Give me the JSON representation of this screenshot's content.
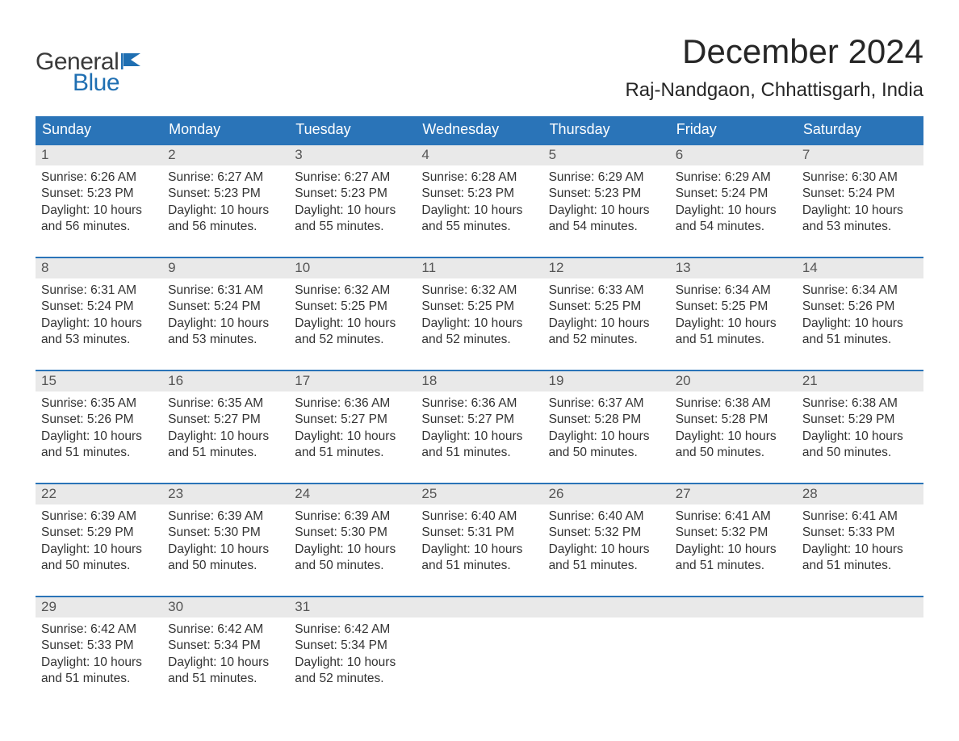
{
  "brand": {
    "word1": "General",
    "word2": "Blue",
    "text_color_general": "#3a3a3a",
    "text_color_blue": "#1f6fb2",
    "flag_color": "#1f6fb2"
  },
  "title": "December 2024",
  "location": "Raj-Nandgaon, Chhattisgarh, India",
  "colors": {
    "header_bg": "#2a74b8",
    "header_text": "#ffffff",
    "daynum_bg": "#e9e9e9",
    "daynum_text": "#555555",
    "body_text": "#333333",
    "week_border": "#2a74b8",
    "page_bg": "#ffffff"
  },
  "layout": {
    "columns": 7,
    "rows": 5,
    "font_family": "Arial",
    "title_fontsize": 42,
    "location_fontsize": 24,
    "weekday_fontsize": 18,
    "daynum_fontsize": 17,
    "body_fontsize": 15.5
  },
  "weekdays": [
    "Sunday",
    "Monday",
    "Tuesday",
    "Wednesday",
    "Thursday",
    "Friday",
    "Saturday"
  ],
  "labels": {
    "sunrise": "Sunrise:",
    "sunset": "Sunset:",
    "daylight": "Daylight:"
  },
  "weeks": [
    [
      {
        "n": "1",
        "sunrise": "6:26 AM",
        "sunset": "5:23 PM",
        "daylight": "10 hours and 56 minutes."
      },
      {
        "n": "2",
        "sunrise": "6:27 AM",
        "sunset": "5:23 PM",
        "daylight": "10 hours and 56 minutes."
      },
      {
        "n": "3",
        "sunrise": "6:27 AM",
        "sunset": "5:23 PM",
        "daylight": "10 hours and 55 minutes."
      },
      {
        "n": "4",
        "sunrise": "6:28 AM",
        "sunset": "5:23 PM",
        "daylight": "10 hours and 55 minutes."
      },
      {
        "n": "5",
        "sunrise": "6:29 AM",
        "sunset": "5:23 PM",
        "daylight": "10 hours and 54 minutes."
      },
      {
        "n": "6",
        "sunrise": "6:29 AM",
        "sunset": "5:24 PM",
        "daylight": "10 hours and 54 minutes."
      },
      {
        "n": "7",
        "sunrise": "6:30 AM",
        "sunset": "5:24 PM",
        "daylight": "10 hours and 53 minutes."
      }
    ],
    [
      {
        "n": "8",
        "sunrise": "6:31 AM",
        "sunset": "5:24 PM",
        "daylight": "10 hours and 53 minutes."
      },
      {
        "n": "9",
        "sunrise": "6:31 AM",
        "sunset": "5:24 PM",
        "daylight": "10 hours and 53 minutes."
      },
      {
        "n": "10",
        "sunrise": "6:32 AM",
        "sunset": "5:25 PM",
        "daylight": "10 hours and 52 minutes."
      },
      {
        "n": "11",
        "sunrise": "6:32 AM",
        "sunset": "5:25 PM",
        "daylight": "10 hours and 52 minutes."
      },
      {
        "n": "12",
        "sunrise": "6:33 AM",
        "sunset": "5:25 PM",
        "daylight": "10 hours and 52 minutes."
      },
      {
        "n": "13",
        "sunrise": "6:34 AM",
        "sunset": "5:25 PM",
        "daylight": "10 hours and 51 minutes."
      },
      {
        "n": "14",
        "sunrise": "6:34 AM",
        "sunset": "5:26 PM",
        "daylight": "10 hours and 51 minutes."
      }
    ],
    [
      {
        "n": "15",
        "sunrise": "6:35 AM",
        "sunset": "5:26 PM",
        "daylight": "10 hours and 51 minutes."
      },
      {
        "n": "16",
        "sunrise": "6:35 AM",
        "sunset": "5:27 PM",
        "daylight": "10 hours and 51 minutes."
      },
      {
        "n": "17",
        "sunrise": "6:36 AM",
        "sunset": "5:27 PM",
        "daylight": "10 hours and 51 minutes."
      },
      {
        "n": "18",
        "sunrise": "6:36 AM",
        "sunset": "5:27 PM",
        "daylight": "10 hours and 51 minutes."
      },
      {
        "n": "19",
        "sunrise": "6:37 AM",
        "sunset": "5:28 PM",
        "daylight": "10 hours and 50 minutes."
      },
      {
        "n": "20",
        "sunrise": "6:38 AM",
        "sunset": "5:28 PM",
        "daylight": "10 hours and 50 minutes."
      },
      {
        "n": "21",
        "sunrise": "6:38 AM",
        "sunset": "5:29 PM",
        "daylight": "10 hours and 50 minutes."
      }
    ],
    [
      {
        "n": "22",
        "sunrise": "6:39 AM",
        "sunset": "5:29 PM",
        "daylight": "10 hours and 50 minutes."
      },
      {
        "n": "23",
        "sunrise": "6:39 AM",
        "sunset": "5:30 PM",
        "daylight": "10 hours and 50 minutes."
      },
      {
        "n": "24",
        "sunrise": "6:39 AM",
        "sunset": "5:30 PM",
        "daylight": "10 hours and 50 minutes."
      },
      {
        "n": "25",
        "sunrise": "6:40 AM",
        "sunset": "5:31 PM",
        "daylight": "10 hours and 51 minutes."
      },
      {
        "n": "26",
        "sunrise": "6:40 AM",
        "sunset": "5:32 PM",
        "daylight": "10 hours and 51 minutes."
      },
      {
        "n": "27",
        "sunrise": "6:41 AM",
        "sunset": "5:32 PM",
        "daylight": "10 hours and 51 minutes."
      },
      {
        "n": "28",
        "sunrise": "6:41 AM",
        "sunset": "5:33 PM",
        "daylight": "10 hours and 51 minutes."
      }
    ],
    [
      {
        "n": "29",
        "sunrise": "6:42 AM",
        "sunset": "5:33 PM",
        "daylight": "10 hours and 51 minutes."
      },
      {
        "n": "30",
        "sunrise": "6:42 AM",
        "sunset": "5:34 PM",
        "daylight": "10 hours and 51 minutes."
      },
      {
        "n": "31",
        "sunrise": "6:42 AM",
        "sunset": "5:34 PM",
        "daylight": "10 hours and 52 minutes."
      },
      null,
      null,
      null,
      null
    ]
  ]
}
